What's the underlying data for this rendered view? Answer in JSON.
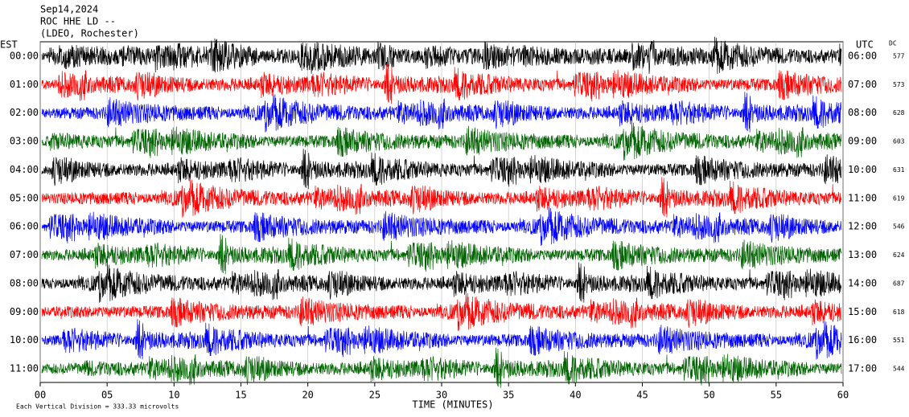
{
  "chart_data": {
    "type": "helicorder",
    "title": [
      "Sep14,2024",
      "ROC HHE LD --",
      "(LDEO, Rochester)"
    ],
    "left_axis_label": "EST",
    "right_axis_label": "UTC",
    "dc_label": "DC",
    "rows": [
      {
        "est": "00:00",
        "utc": "06:00",
        "dc": 577,
        "color": "#000000"
      },
      {
        "est": "01:00",
        "utc": "07:00",
        "dc": 573,
        "color": "#ff0000"
      },
      {
        "est": "02:00",
        "utc": "08:00",
        "dc": 628,
        "color": "#0000ff"
      },
      {
        "est": "03:00",
        "utc": "09:00",
        "dc": 603,
        "color": "#006400"
      },
      {
        "est": "04:00",
        "utc": "10:00",
        "dc": 631,
        "color": "#000000"
      },
      {
        "est": "05:00",
        "utc": "11:00",
        "dc": 619,
        "color": "#ff0000"
      },
      {
        "est": "06:00",
        "utc": "12:00",
        "dc": 546,
        "color": "#0000ff"
      },
      {
        "est": "07:00",
        "utc": "13:00",
        "dc": 624,
        "color": "#006400"
      },
      {
        "est": "08:00",
        "utc": "14:00",
        "dc": 687,
        "color": "#000000"
      },
      {
        "est": "09:00",
        "utc": "15:00",
        "dc": 618,
        "color": "#ff0000"
      },
      {
        "est": "10:00",
        "utc": "16:00",
        "dc": 551,
        "color": "#0000ff"
      },
      {
        "est": "11:00",
        "utc": "17:00",
        "dc": 544,
        "color": "#006400"
      }
    ],
    "xlim": [
      0,
      60
    ],
    "xticks": [
      {
        "value": 0,
        "label": "00"
      },
      {
        "value": 5,
        "label": "05"
      },
      10,
      15,
      20,
      25,
      30,
      35,
      40,
      45,
      50,
      55,
      60
    ],
    "xlabel": "TIME (MINUTES)",
    "footer": "Each Vertical Division =  333.33 microvolts"
  }
}
